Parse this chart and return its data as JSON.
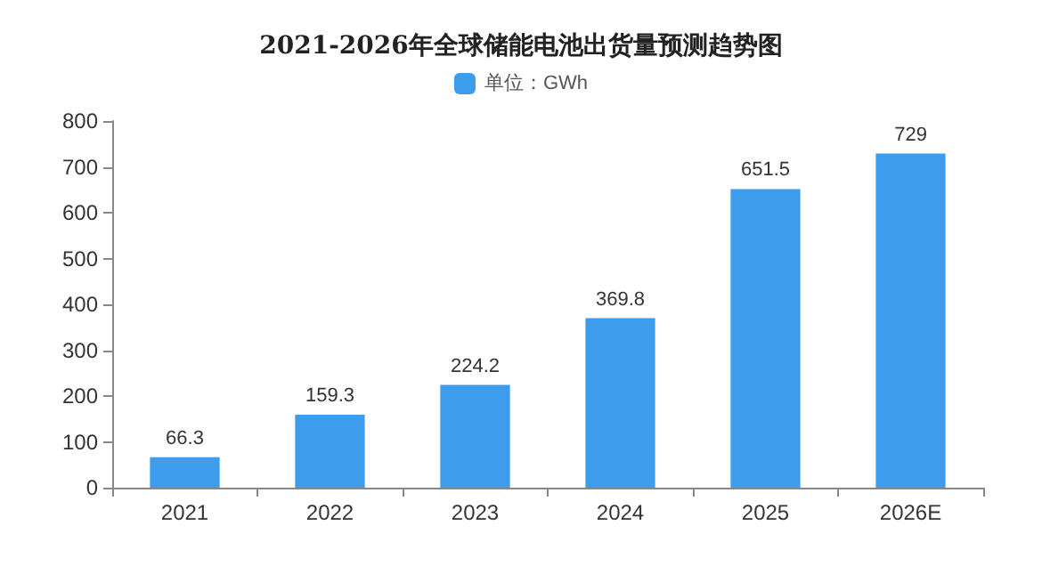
{
  "chart_data": {
    "type": "bar",
    "title": "2021-2026年全球储能电池出货量预测趋势图",
    "categories": [
      "2021",
      "2022",
      "2023",
      "2024",
      "2025",
      "2026E"
    ],
    "series": [
      {
        "name": "单位：GWh",
        "color": "#3d9cec",
        "values": [
          66.3,
          159.3,
          224.2,
          369.8,
          651.5,
          729
        ]
      }
    ],
    "ylim": [
      0,
      800
    ],
    "yticks": [
      0,
      100,
      200,
      300,
      400,
      500,
      600,
      700,
      800
    ],
    "grid": false,
    "legend": "top",
    "data_labels": true
  }
}
